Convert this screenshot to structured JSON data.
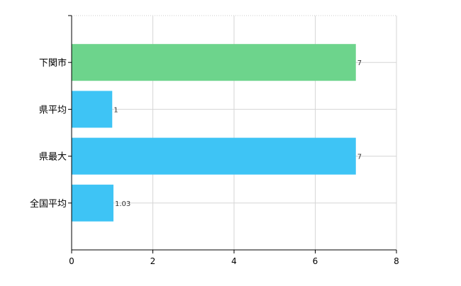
{
  "chart_data": {
    "type": "bar",
    "orientation": "horizontal",
    "categories": [
      "下関市",
      "県平均",
      "県最大",
      "全国平均"
    ],
    "values": [
      7,
      1,
      7,
      1.03
    ],
    "data_labels": [
      "7",
      "1",
      "7",
      "1.03"
    ],
    "bar_colors": [
      "#6dd48c",
      "#3ec4f5",
      "#3ec4f5",
      "#3ec4f5"
    ],
    "xlim": [
      0,
      8
    ],
    "x_ticks": [
      0,
      2,
      4,
      6,
      8
    ],
    "grid": true,
    "legend": "none",
    "title": "",
    "xlabel": "",
    "ylabel": ""
  }
}
